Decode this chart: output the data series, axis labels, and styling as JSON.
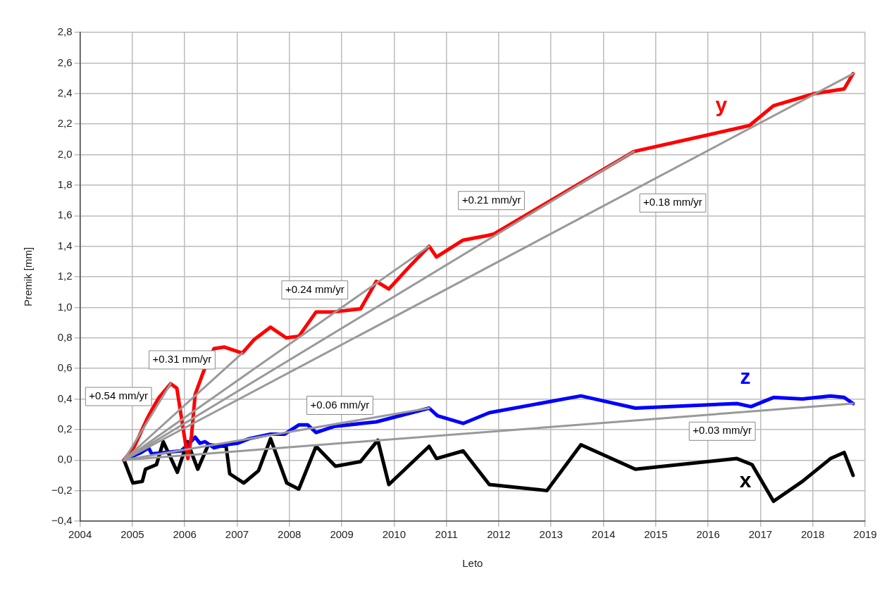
{
  "chart_data": {
    "type": "line",
    "xlabel": "Leto",
    "ylabel": "Premik [mm]",
    "xlim": [
      2004,
      2019
    ],
    "xticks": [
      2004,
      2005,
      2006,
      2007,
      2008,
      2009,
      2010,
      2011,
      2012,
      2013,
      2014,
      2015,
      2016,
      2017,
      2018,
      2019
    ],
    "ylim": [
      -0.4,
      2.8
    ],
    "yticks": [
      {
        "value": -0.4,
        "label": "−0,4"
      },
      {
        "value": -0.2,
        "label": "−0,2"
      },
      {
        "value": 0,
        "label": "0,0"
      },
      {
        "value": 0.2,
        "label": "0,2"
      },
      {
        "value": 0.4,
        "label": "0,4"
      },
      {
        "value": 0.6,
        "label": "0,6"
      },
      {
        "value": 0.8,
        "label": "0,8"
      },
      {
        "value": 1,
        "label": "1,0"
      },
      {
        "value": 1.2,
        "label": "1,2"
      },
      {
        "value": 1.4,
        "label": "1,4"
      },
      {
        "value": 1.6,
        "label": "1,6"
      },
      {
        "value": 1.8,
        "label": "1,8"
      },
      {
        "value": 2,
        "label": "2,0"
      },
      {
        "value": 2.2,
        "label": "2,2"
      },
      {
        "value": 2.4,
        "label": "2,4"
      },
      {
        "value": 2.6,
        "label": "2,6"
      },
      {
        "value": 2.8,
        "label": "2,8"
      }
    ],
    "grid": true,
    "legend": false,
    "marker": "none",
    "line_style": "solid",
    "series": [
      {
        "name": "y",
        "color": "#ff0000",
        "x": [
          2004.84,
          2005.04,
          2005.28,
          2005.39,
          2005.51,
          2005.73,
          2005.85,
          2005.95,
          2006.06,
          2006.13,
          2006.2,
          2006.36,
          2006.56,
          2006.76,
          2007.1,
          2007.33,
          2007.64,
          2007.94,
          2008.18,
          2008.51,
          2008.85,
          2009.36,
          2009.66,
          2009.9,
          2010.33,
          2010.67,
          2010.81,
          2011.32,
          2011.78,
          2011.91,
          2014.58,
          2016.79,
          2017.25,
          2018.04,
          2018.6,
          2018.77
        ],
        "values": [
          0,
          0.09,
          0.27,
          0.34,
          0.41,
          0.5,
          0.47,
          0.25,
          0.01,
          0.16,
          0.43,
          0.58,
          0.73,
          0.74,
          0.7,
          0.79,
          0.87,
          0.8,
          0.81,
          0.97,
          0.97,
          0.99,
          1.17,
          1.12,
          1.28,
          1.4,
          1.33,
          1.44,
          1.47,
          1.48,
          2.02,
          2.19,
          2.32,
          2.4,
          2.43,
          2.53
        ]
      },
      {
        "name": "z",
        "color": "#0000ff",
        "x": [
          2004.84,
          2005.17,
          2005.31,
          2005.37,
          2005.93,
          2006.09,
          2006.2,
          2006.29,
          2006.39,
          2006.56,
          2006.79,
          2007.01,
          2007.23,
          2007.64,
          2007.91,
          2008.18,
          2008.35,
          2008.51,
          2008.85,
          2009.66,
          2010.67,
          2010.83,
          2011.32,
          2011.82,
          2013.57,
          2014.61,
          2016.55,
          2016.82,
          2017.25,
          2017.8,
          2018.34,
          2018.6,
          2018.77
        ],
        "values": [
          0,
          0.05,
          0.08,
          0.04,
          0.06,
          0.11,
          0.15,
          0.11,
          0.12,
          0.08,
          0.1,
          0.11,
          0.14,
          0.17,
          0.17,
          0.23,
          0.23,
          0.18,
          0.22,
          0.25,
          0.34,
          0.29,
          0.24,
          0.31,
          0.42,
          0.34,
          0.37,
          0.35,
          0.41,
          0.4,
          0.42,
          0.41,
          0.37
        ]
      },
      {
        "name": "x",
        "color": "#000000",
        "x": [
          2004.84,
          2005.01,
          2005.19,
          2005.25,
          2005.46,
          2005.59,
          2005.86,
          2006.05,
          2006.25,
          2006.45,
          2006.79,
          2006.86,
          2007.13,
          2007.41,
          2007.64,
          2007.95,
          2008.18,
          2008.51,
          2008.88,
          2009.36,
          2009.69,
          2009.9,
          2010.67,
          2010.81,
          2011.32,
          2011.82,
          2012.92,
          2013.57,
          2014.61,
          2016.55,
          2016.84,
          2017.25,
          2017.8,
          2018.34,
          2018.6,
          2018.77
        ],
        "values": [
          0,
          -0.15,
          -0.14,
          -0.06,
          -0.03,
          0.12,
          -0.08,
          0.12,
          -0.06,
          0.1,
          0.09,
          -0.09,
          -0.15,
          -0.07,
          0.14,
          -0.15,
          -0.19,
          0.09,
          -0.04,
          -0.01,
          0.13,
          -0.16,
          0.09,
          0.01,
          0.06,
          -0.16,
          -0.2,
          0.1,
          -0.06,
          0.01,
          -0.03,
          -0.27,
          -0.14,
          0.01,
          0.05,
          -0.1
        ]
      },
      {
        "type": "line",
        "color": "#999999",
        "x": [
          2004.84,
          2005.73
        ],
        "values": [
          0,
          0.5
        ]
      },
      {
        "type": "line",
        "color": "#999999",
        "x": [
          2004.84,
          2007.1
        ],
        "values": [
          0,
          0.7
        ]
      },
      {
        "type": "line",
        "color": "#999999",
        "x": [
          2004.84,
          2010.67
        ],
        "values": [
          0,
          1.4
        ]
      },
      {
        "type": "line",
        "color": "#999999",
        "x": [
          2004.84,
          2014.58
        ],
        "values": [
          0,
          2.02
        ]
      },
      {
        "type": "line",
        "color": "#999999",
        "x": [
          2004.84,
          2018.77
        ],
        "values": [
          0,
          2.53
        ]
      },
      {
        "type": "line",
        "color": "#999999",
        "x": [
          2004.84,
          2010.67
        ],
        "values": [
          0,
          0.34
        ]
      },
      {
        "type": "line",
        "color": "#999999",
        "x": [
          2004.84,
          2018.77
        ],
        "values": [
          0,
          0.37
        ]
      }
    ],
    "annotations": [
      "+0.54 mm/yr",
      "+0.31 mm/yr",
      "+0.24 mm/yr",
      "+0.21 mm/yr",
      "+0.18 mm/yr",
      "+0.06 mm/yr",
      "+0.03 mm/yr"
    ]
  }
}
